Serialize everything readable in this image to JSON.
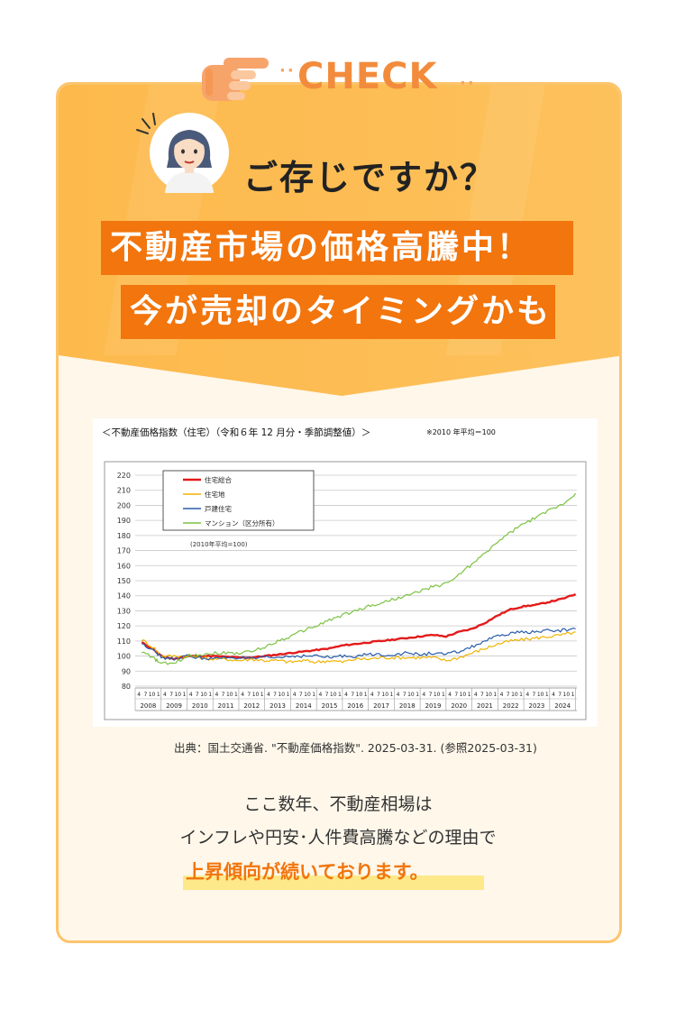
{
  "check": {
    "label": "CHECK",
    "dots_left": "··",
    "dots_right": "··"
  },
  "intro": {
    "question": "ご存じですか？"
  },
  "banner": {
    "line1": "不動産市場の価格高騰中！",
    "line2": "今が売却のタイミングかも"
  },
  "chart_header": {
    "title": "＜不動産価格指数（住宅）（令和６年 12 月分・季節調整値）＞",
    "note": "※2010 年平均＝100"
  },
  "chart_data": {
    "type": "line",
    "ylim": [
      80,
      220
    ],
    "yticks": [
      80,
      90,
      100,
      110,
      120,
      130,
      140,
      150,
      160,
      170,
      180,
      190,
      200,
      210,
      220
    ],
    "years": [
      "2008",
      "2009",
      "2010",
      "2011",
      "2012",
      "2013",
      "2014",
      "2015",
      "2016",
      "2017",
      "2018",
      "2019",
      "2020",
      "2021",
      "2022",
      "2023",
      "2024"
    ],
    "month_ticks": [
      "4",
      "7",
      "10",
      "1"
    ],
    "inner_note": "(2010年平均=100)",
    "grid": true,
    "legend_position": "top-left",
    "series": [
      {
        "name": "住宅総合",
        "color": "#e31b1b",
        "points": [
          [
            2008.25,
            109
          ],
          [
            2008.75,
            104
          ],
          [
            2009.0,
            100
          ],
          [
            2009.5,
            98
          ],
          [
            2010.0,
            100
          ],
          [
            2010.5,
            100
          ],
          [
            2011.0,
            100
          ],
          [
            2011.5,
            99.5
          ],
          [
            2012.0,
            99
          ],
          [
            2012.5,
            99
          ],
          [
            2013.0,
            100
          ],
          [
            2013.5,
            101
          ],
          [
            2014.0,
            102
          ],
          [
            2014.5,
            103
          ],
          [
            2015.0,
            104
          ],
          [
            2015.5,
            105
          ],
          [
            2016.0,
            107
          ],
          [
            2016.5,
            108
          ],
          [
            2017.0,
            109
          ],
          [
            2017.5,
            110
          ],
          [
            2018.0,
            111
          ],
          [
            2018.5,
            112
          ],
          [
            2019.0,
            113
          ],
          [
            2019.5,
            114
          ],
          [
            2020.0,
            113
          ],
          [
            2020.5,
            116
          ],
          [
            2021.0,
            118
          ],
          [
            2021.5,
            122
          ],
          [
            2022.0,
            127
          ],
          [
            2022.5,
            131
          ],
          [
            2023.0,
            133
          ],
          [
            2023.5,
            134
          ],
          [
            2024.0,
            136
          ],
          [
            2024.5,
            138
          ],
          [
            2025.0,
            141
          ]
        ]
      },
      {
        "name": "住宅地",
        "color": "#f0b400",
        "points": [
          [
            2008.25,
            111
          ],
          [
            2008.75,
            105
          ],
          [
            2009.0,
            100
          ],
          [
            2009.5,
            100
          ],
          [
            2010.0,
            100
          ],
          [
            2010.5,
            99
          ],
          [
            2011.0,
            98
          ],
          [
            2011.5,
            98
          ],
          [
            2012.0,
            97
          ],
          [
            2012.5,
            98
          ],
          [
            2013.0,
            97
          ],
          [
            2013.5,
            97
          ],
          [
            2014.0,
            96
          ],
          [
            2014.5,
            97
          ],
          [
            2015.0,
            96
          ],
          [
            2015.5,
            97
          ],
          [
            2016.0,
            96
          ],
          [
            2016.5,
            98
          ],
          [
            2017.0,
            98
          ],
          [
            2017.5,
            99
          ],
          [
            2018.0,
            99
          ],
          [
            2018.5,
            99
          ],
          [
            2019.0,
            99
          ],
          [
            2019.5,
            99
          ],
          [
            2020.0,
            97
          ],
          [
            2020.5,
            99
          ],
          [
            2021.0,
            102
          ],
          [
            2021.5,
            105
          ],
          [
            2022.0,
            108
          ],
          [
            2022.5,
            110
          ],
          [
            2023.0,
            111
          ],
          [
            2023.5,
            112
          ],
          [
            2024.0,
            113
          ],
          [
            2024.5,
            114
          ],
          [
            2025.0,
            116
          ]
        ]
      },
      {
        "name": "戸建住宅",
        "color": "#2a5caa",
        "points": [
          [
            2008.25,
            108
          ],
          [
            2008.75,
            104
          ],
          [
            2009.0,
            99
          ],
          [
            2009.5,
            98
          ],
          [
            2010.0,
            100
          ],
          [
            2010.5,
            99
          ],
          [
            2011.0,
            98
          ],
          [
            2011.5,
            99
          ],
          [
            2012.0,
            99
          ],
          [
            2012.5,
            98
          ],
          [
            2013.0,
            99
          ],
          [
            2013.5,
            99
          ],
          [
            2014.0,
            100
          ],
          [
            2014.5,
            100
          ],
          [
            2015.0,
            100
          ],
          [
            2015.5,
            99
          ],
          [
            2016.0,
            100
          ],
          [
            2016.5,
            100
          ],
          [
            2017.0,
            101
          ],
          [
            2017.5,
            101
          ],
          [
            2018.0,
            101
          ],
          [
            2018.5,
            102
          ],
          [
            2019.0,
            101
          ],
          [
            2019.5,
            102
          ],
          [
            2020.0,
            101
          ],
          [
            2020.5,
            103
          ],
          [
            2021.0,
            106
          ],
          [
            2021.5,
            110
          ],
          [
            2022.0,
            113
          ],
          [
            2022.5,
            115
          ],
          [
            2023.0,
            116
          ],
          [
            2023.5,
            116
          ],
          [
            2024.0,
            117
          ],
          [
            2024.5,
            117
          ],
          [
            2025.0,
            118
          ]
        ]
      },
      {
        "name": "マンション（区分所有）",
        "color": "#7cc242",
        "points": [
          [
            2008.25,
            103
          ],
          [
            2008.75,
            98
          ],
          [
            2009.0,
            95
          ],
          [
            2009.5,
            95
          ],
          [
            2010.0,
            100
          ],
          [
            2010.5,
            101
          ],
          [
            2011.0,
            102
          ],
          [
            2011.5,
            102
          ],
          [
            2012.0,
            102
          ],
          [
            2012.5,
            103
          ],
          [
            2013.0,
            106
          ],
          [
            2013.5,
            110
          ],
          [
            2014.0,
            113
          ],
          [
            2014.5,
            117
          ],
          [
            2015.0,
            120
          ],
          [
            2015.5,
            124
          ],
          [
            2016.0,
            127
          ],
          [
            2016.5,
            130
          ],
          [
            2017.0,
            133
          ],
          [
            2017.5,
            135
          ],
          [
            2018.0,
            138
          ],
          [
            2018.5,
            140
          ],
          [
            2019.0,
            143
          ],
          [
            2019.5,
            146
          ],
          [
            2020.0,
            148
          ],
          [
            2020.5,
            154
          ],
          [
            2021.0,
            161
          ],
          [
            2021.5,
            168
          ],
          [
            2022.0,
            176
          ],
          [
            2022.5,
            182
          ],
          [
            2023.0,
            188
          ],
          [
            2023.5,
            192
          ],
          [
            2024.0,
            197
          ],
          [
            2024.5,
            201
          ],
          [
            2025.0,
            208
          ]
        ]
      }
    ]
  },
  "source": {
    "text": "出典：国土交通省. \"不動産価格指数\". 2025-03-31. (参照2025-03-31)"
  },
  "body_text": {
    "line1": "ここ数年、不動産相場は",
    "line2": "インフレや円安･人件費高騰などの理由で",
    "line3": "上昇傾向が続いております。"
  },
  "colors": {
    "orange": "#f2750d",
    "card_yellow": "#fcc56c",
    "cream": "#fef7ea",
    "highlight": "#fde98a"
  }
}
